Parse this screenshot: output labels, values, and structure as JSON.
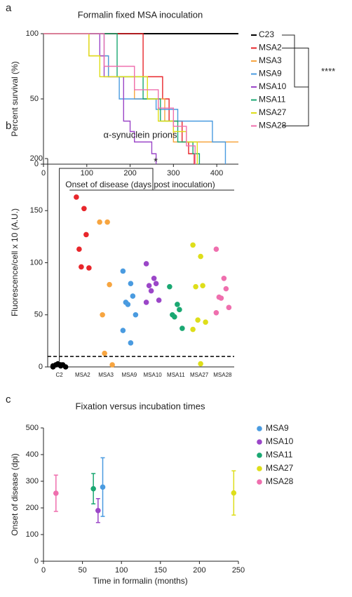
{
  "chart_data": [
    {
      "type": "step",
      "panel_label": "a",
      "title": "Formalin fixed MSA inoculation",
      "x_label": "Onset of disease  (days post inoculation)",
      "y_label": "Percent survival (%)",
      "xlim": [
        0,
        450
      ],
      "xticks": [
        0,
        100,
        200,
        300,
        400
      ],
      "ylim": [
        0,
        100
      ],
      "yticks": [
        0,
        50,
        100
      ],
      "annotation": "****",
      "series": [
        {
          "name": "C23",
          "color": "#000000",
          "x": [
            0,
            450
          ],
          "values": [
            100,
            100
          ]
        },
        {
          "name": "MSA2",
          "color": "#e8262b",
          "x": [
            0,
            230,
            275,
            290,
            320,
            335,
            348
          ],
          "values": [
            100,
            67,
            50,
            33,
            17,
            8,
            0
          ]
        },
        {
          "name": "MSA3",
          "color": "#f7a540",
          "x": [
            0,
            105,
            150,
            210,
            280,
            300,
            450
          ],
          "values": [
            100,
            83,
            67,
            50,
            33,
            17,
            17
          ]
        },
        {
          "name": "MSA9",
          "color": "#4a9be0",
          "x": [
            0,
            140,
            150,
            175,
            260,
            310,
            390,
            420
          ],
          "values": [
            100,
            83,
            67,
            50,
            42,
            33,
            17,
            0
          ]
        },
        {
          "name": "MSA10",
          "color": "#9b46c8",
          "x": [
            0,
            130,
            140,
            185,
            200,
            210,
            250,
            260
          ],
          "values": [
            100,
            83,
            67,
            33,
            25,
            17,
            8,
            0
          ]
        },
        {
          "name": "MSA11",
          "color": "#1aa872",
          "x": [
            0,
            170,
            230,
            270,
            310,
            345,
            360
          ],
          "values": [
            100,
            67,
            50,
            33,
            17,
            8,
            0
          ]
        },
        {
          "name": "MSA27",
          "color": "#dede1a",
          "x": [
            0,
            105,
            130,
            240,
            265,
            300,
            330,
            355
          ],
          "values": [
            100,
            83,
            67,
            50,
            33,
            25,
            17,
            0
          ]
        },
        {
          "name": "MSA28",
          "color": "#ef6fae",
          "x": [
            0,
            140,
            210,
            265,
            300,
            330,
            350
          ],
          "values": [
            100,
            75,
            57,
            43,
            29,
            14,
            0
          ]
        }
      ]
    },
    {
      "type": "strip",
      "panel_label": "b",
      "title": "α-synuclein prions",
      "y_label": "Fluorescence/cell x 10 (A.U.)",
      "ylim": [
        0,
        200
      ],
      "yticks": [
        0,
        50,
        100,
        150,
        200
      ],
      "reference_line": 10,
      "annotation": "*",
      "categories": [
        "C2",
        "MSA2",
        "MSA3",
        "MSA9",
        "MSA10",
        "MSA11",
        "MSA27",
        "MSA28"
      ],
      "colors": [
        "#000000",
        "#e8262b",
        "#f7a540",
        "#4a9be0",
        "#9b46c8",
        "#1aa872",
        "#dede1a",
        "#ef6fae"
      ],
      "values": [
        [
          0,
          1,
          2,
          2,
          3,
          0,
          1,
          2
        ],
        [
          163,
          152,
          127,
          113,
          96,
          95
        ],
        [
          139,
          139,
          79,
          50,
          13,
          2
        ],
        [
          92,
          80,
          68,
          62,
          60,
          50,
          35,
          23
        ],
        [
          99,
          85,
          80,
          78,
          73,
          64,
          62
        ],
        [
          77,
          60,
          55,
          50,
          48,
          37
        ],
        [
          117,
          106,
          78,
          77,
          45,
          43,
          36,
          3
        ],
        [
          113,
          85,
          75,
          67,
          66,
          57,
          52
        ]
      ]
    },
    {
      "type": "scatter",
      "panel_label": "c",
      "title": "Fixation versus incubation times",
      "x_label": "Time in formalin (months)",
      "y_label": "Onset of disease (dpi)",
      "xlim": [
        0,
        250
      ],
      "xticks": [
        0,
        50,
        100,
        150,
        200,
        250
      ],
      "ylim": [
        0,
        500
      ],
      "yticks": [
        0,
        100,
        200,
        300,
        400,
        500
      ],
      "series": [
        {
          "name": "MSA9",
          "color": "#4a9be0",
          "x": [
            76
          ],
          "values": [
            278
          ],
          "errors": [
            110
          ]
        },
        {
          "name": "MSA10",
          "color": "#9b46c8",
          "x": [
            70
          ],
          "values": [
            190
          ],
          "errors": [
            45
          ]
        },
        {
          "name": "MSA11",
          "color": "#1aa872",
          "x": [
            64
          ],
          "values": [
            272
          ],
          "errors": [
            57
          ]
        },
        {
          "name": "MSA27",
          "color": "#dede1a",
          "x": [
            244
          ],
          "values": [
            256
          ],
          "errors": [
            83
          ]
        },
        {
          "name": "MSA28",
          "color": "#ef6fae",
          "x": [
            16
          ],
          "values": [
            255
          ],
          "errors": [
            68
          ]
        }
      ]
    }
  ]
}
